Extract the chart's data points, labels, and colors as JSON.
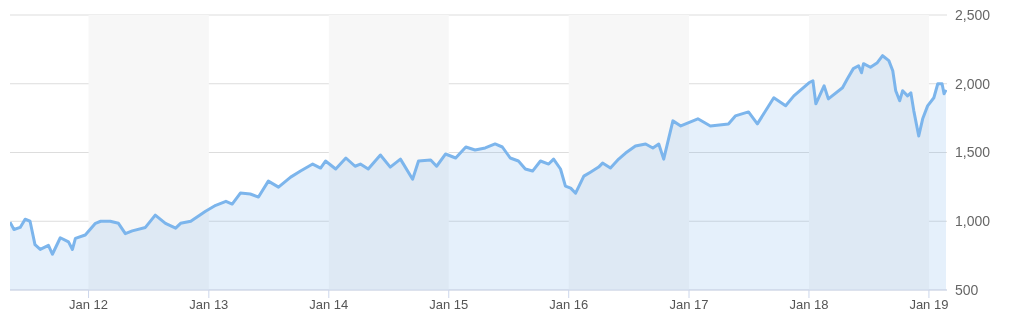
{
  "chart_data": {
    "type": "area",
    "x": [
      "2011-05-07",
      "2011-05-19",
      "2011-06-07",
      "2011-06-22",
      "2011-07-07",
      "2011-07-22",
      "2011-08-07",
      "2011-09-01",
      "2011-09-13",
      "2011-10-07",
      "2011-11-01",
      "2011-11-13",
      "2011-11-22",
      "2011-12-22",
      "2012-01-22",
      "2012-02-07",
      "2012-03-07",
      "2012-04-01",
      "2012-04-22",
      "2012-05-13",
      "2012-06-22",
      "2012-07-22",
      "2012-08-22",
      "2012-09-22",
      "2012-10-07",
      "2012-11-07",
      "2012-12-22",
      "2013-01-22",
      "2013-02-22",
      "2013-03-13",
      "2013-04-07",
      "2013-05-07",
      "2013-06-01",
      "2013-07-01",
      "2013-08-01",
      "2013-09-07",
      "2013-10-07",
      "2013-11-13",
      "2013-12-07",
      "2013-12-22",
      "2014-01-22",
      "2014-02-22",
      "2014-03-22",
      "2014-04-07",
      "2014-05-01",
      "2014-06-07",
      "2014-07-07",
      "2014-08-07",
      "2014-09-13",
      "2014-10-01",
      "2014-11-07",
      "2014-11-25",
      "2014-12-22",
      "2015-01-22",
      "2015-02-22",
      "2015-03-22",
      "2015-04-22",
      "2015-05-22",
      "2015-06-13",
      "2015-07-07",
      "2015-08-01",
      "2015-08-22",
      "2015-09-13",
      "2015-10-07",
      "2015-11-01",
      "2015-11-16",
      "2015-12-07",
      "2015-12-22",
      "2016-01-07",
      "2016-01-22",
      "2016-02-16",
      "2016-03-07",
      "2016-04-01",
      "2016-04-13",
      "2016-05-07",
      "2016-06-01",
      "2016-06-22",
      "2016-07-22",
      "2016-08-22",
      "2016-09-13",
      "2016-10-01",
      "2016-10-16",
      "2016-11-13",
      "2016-12-07",
      "2017-01-28",
      "2017-03-07",
      "2017-05-01",
      "2017-05-22",
      "2017-07-01",
      "2017-07-28",
      "2017-09-16",
      "2017-10-22",
      "2017-11-16",
      "2018-01-01",
      "2018-01-13",
      "2018-01-22",
      "2018-02-16",
      "2018-03-01",
      "2018-04-13",
      "2018-04-28",
      "2018-05-16",
      "2018-06-01",
      "2018-06-10",
      "2018-06-16",
      "2018-07-07",
      "2018-07-28",
      "2018-08-13",
      "2018-09-01",
      "2018-09-13",
      "2018-09-22",
      "2018-10-04",
      "2018-10-13",
      "2018-10-28",
      "2018-11-07",
      "2018-11-16",
      "2018-12-01",
      "2018-12-13",
      "2018-12-28",
      "2019-01-16",
      "2019-01-28",
      "2019-02-10",
      "2019-02-16",
      "2019-02-22"
    ],
    "series": [
      {
        "color": "#7cb5ec",
        "values": [
          993,
          940,
          955,
          1015,
          1000,
          830,
          795,
          825,
          760,
          880,
          850,
          795,
          875,
          900,
          985,
          1000,
          1000,
          985,
          910,
          930,
          955,
          1045,
          985,
          950,
          985,
          1000,
          1073,
          1116,
          1145,
          1125,
          1205,
          1198,
          1176,
          1292,
          1248,
          1321,
          1365,
          1416,
          1387,
          1438,
          1380,
          1460,
          1400,
          1416,
          1380,
          1482,
          1394,
          1452,
          1306,
          1438,
          1445,
          1400,
          1489,
          1460,
          1540,
          1518,
          1533,
          1562,
          1540,
          1460,
          1438,
          1380,
          1365,
          1438,
          1416,
          1452,
          1380,
          1255,
          1241,
          1204,
          1328,
          1357,
          1394,
          1423,
          1387,
          1452,
          1496,
          1547,
          1562,
          1533,
          1562,
          1452,
          1730,
          1693,
          1745,
          1693,
          1708,
          1766,
          1795,
          1708,
          1898,
          1840,
          1912,
          2007,
          2022,
          1854,
          1985,
          1890,
          1971,
          2037,
          2110,
          2131,
          2080,
          2146,
          2120,
          2153,
          2204,
          2168,
          2095,
          1949,
          1876,
          1949,
          1912,
          1934,
          1803,
          1620,
          1745,
          1839,
          1898,
          2000,
          2000,
          1927,
          1956
        ]
      }
    ],
    "xlim": [
      "2011-05-07",
      "2019-02-25"
    ],
    "xticks": [
      {
        "value": "2012-01-01",
        "label": "Jan 12"
      },
      {
        "value": "2013-01-01",
        "label": "Jan 13"
      },
      {
        "value": "2014-01-01",
        "label": "Jan 14"
      },
      {
        "value": "2015-01-01",
        "label": "Jan 15"
      },
      {
        "value": "2016-01-01",
        "label": "Jan 16"
      },
      {
        "value": "2017-01-01",
        "label": "Jan 17"
      },
      {
        "value": "2018-01-01",
        "label": "Jan 18"
      },
      {
        "value": "2019-01-01",
        "label": "Jan 19"
      }
    ],
    "ylim": [
      500,
      2500
    ],
    "yticks": [
      500,
      {
        "value": 1000,
        "label": "1,000"
      },
      {
        "value": 1500,
        "label": "1,500"
      },
      {
        "value": 2000,
        "label": "2,000"
      },
      {
        "value": 2500,
        "label": "2,500"
      }
    ],
    "bands": [
      {
        "axis": "x",
        "from": "2012-01-01",
        "to": "2013-01-01",
        "color": "#f7f7f7"
      },
      {
        "axis": "x",
        "from": "2014-01-01",
        "to": "2015-01-01",
        "color": "#f7f7f7"
      },
      {
        "axis": "x",
        "from": "2016-01-01",
        "to": "2017-01-01",
        "color": "#f7f7f7"
      },
      {
        "axis": "x",
        "from": "2018-01-01",
        "to": "2019-01-01",
        "color": "#f7f7f7"
      }
    ],
    "grid": "y",
    "legend": false,
    "line_style": "solid",
    "marker": "none"
  }
}
